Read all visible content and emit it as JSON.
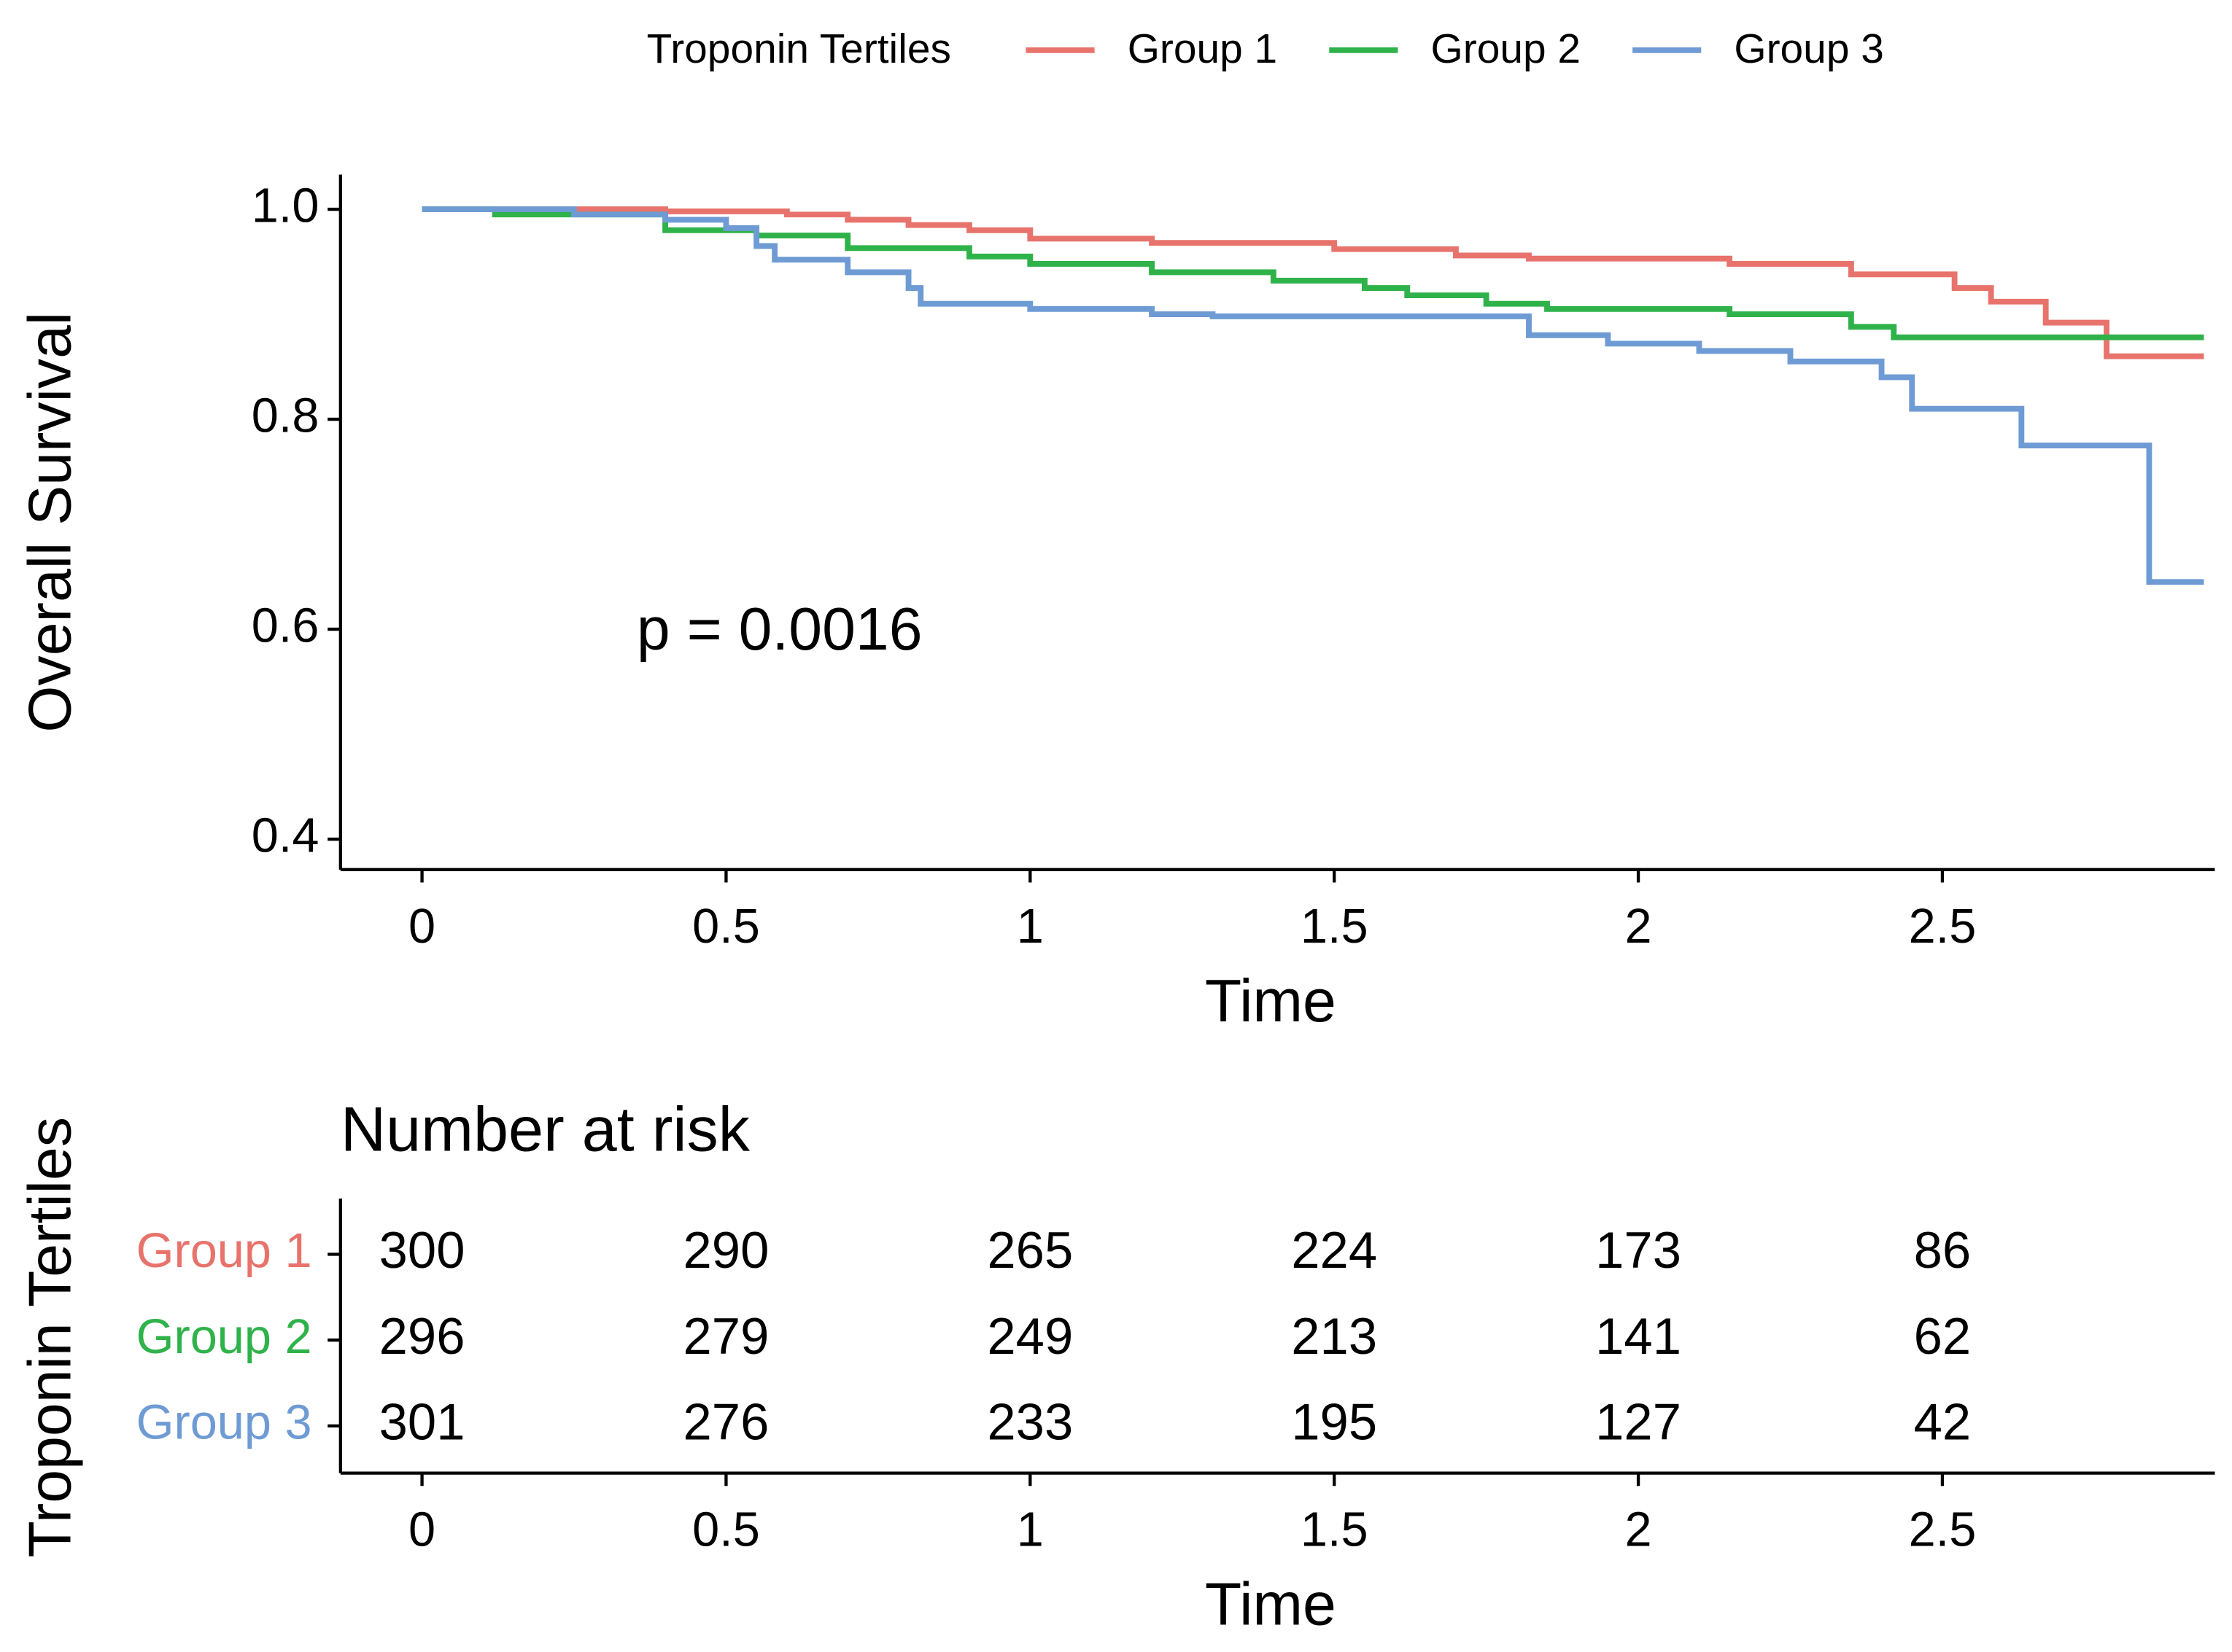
{
  "chart_data": [
    {
      "type": "step",
      "legend_title": "Troponin Tertiles",
      "legend_position": "top",
      "x_label": "Time",
      "y_label": "Overall Survival",
      "annotation": "p = 0.0016",
      "xlim": [
        -0.134,
        2.948
      ],
      "xticks": [
        0,
        0.5,
        1,
        1.5,
        2,
        2.5
      ],
      "ylim": [
        0.371,
        1.033
      ],
      "yticks": [
        {
          "value": 1.0,
          "label": "1.0"
        },
        {
          "value": 0.8,
          "label": "0.8"
        },
        {
          "value": 0.6,
          "label": "0.6"
        },
        {
          "value": 0.4,
          "label": "0.4"
        }
      ],
      "series": [
        {
          "name": "Group 1",
          "color": "#e8736c",
          "x": [
            0,
            0.4,
            0.6,
            0.7,
            0.8,
            0.9,
            1.0,
            1.2,
            1.5,
            1.7,
            1.82,
            2.15,
            2.35,
            2.52,
            2.58,
            2.67,
            2.77,
            2.93
          ],
          "values": [
            1.0,
            0.998,
            0.995,
            0.99,
            0.985,
            0.98,
            0.972,
            0.968,
            0.962,
            0.956,
            0.953,
            0.948,
            0.938,
            0.925,
            0.912,
            0.892,
            0.86,
            0.86
          ]
        },
        {
          "name": "Group 2",
          "color": "#2fb24a",
          "x": [
            0,
            0.12,
            0.4,
            0.55,
            0.7,
            0.9,
            1.0,
            1.2,
            1.4,
            1.55,
            1.62,
            1.75,
            1.85,
            2.15,
            2.35,
            2.42,
            2.93
          ],
          "values": [
            1.0,
            0.995,
            0.98,
            0.975,
            0.963,
            0.955,
            0.948,
            0.94,
            0.932,
            0.925,
            0.918,
            0.91,
            0.905,
            0.9,
            0.888,
            0.878,
            0.878
          ]
        },
        {
          "name": "Group 3",
          "color": "#6e9bd4",
          "x": [
            0,
            0.25,
            0.4,
            0.5,
            0.55,
            0.58,
            0.7,
            0.8,
            0.82,
            1.0,
            1.2,
            1.3,
            1.75,
            1.82,
            1.95,
            2.1,
            2.25,
            2.4,
            2.45,
            2.63,
            2.84,
            2.93
          ],
          "values": [
            1.0,
            0.995,
            0.99,
            0.982,
            0.965,
            0.952,
            0.94,
            0.925,
            0.91,
            0.905,
            0.9,
            0.898,
            0.898,
            0.88,
            0.872,
            0.865,
            0.855,
            0.84,
            0.81,
            0.775,
            0.645,
            0.645
          ]
        }
      ]
    },
    {
      "type": "table",
      "title": "Number at risk",
      "x_label": "Time",
      "y_label": "Troponin Tertiles",
      "xlim": [
        -0.134,
        2.948
      ],
      "xticks": [
        0,
        0.5,
        1,
        1.5,
        2,
        2.5
      ],
      "x": [
        0,
        0.5,
        1,
        1.5,
        2,
        2.5
      ],
      "series": [
        {
          "name": "Group 1",
          "color": "#e8736c",
          "values": [
            300,
            290,
            265,
            224,
            173,
            86
          ]
        },
        {
          "name": "Group 2",
          "color": "#2fb24a",
          "values": [
            296,
            279,
            249,
            213,
            141,
            62
          ]
        },
        {
          "name": "Group 3",
          "color": "#6e9bd4",
          "values": [
            301,
            276,
            233,
            195,
            127,
            42
          ]
        }
      ]
    }
  ]
}
